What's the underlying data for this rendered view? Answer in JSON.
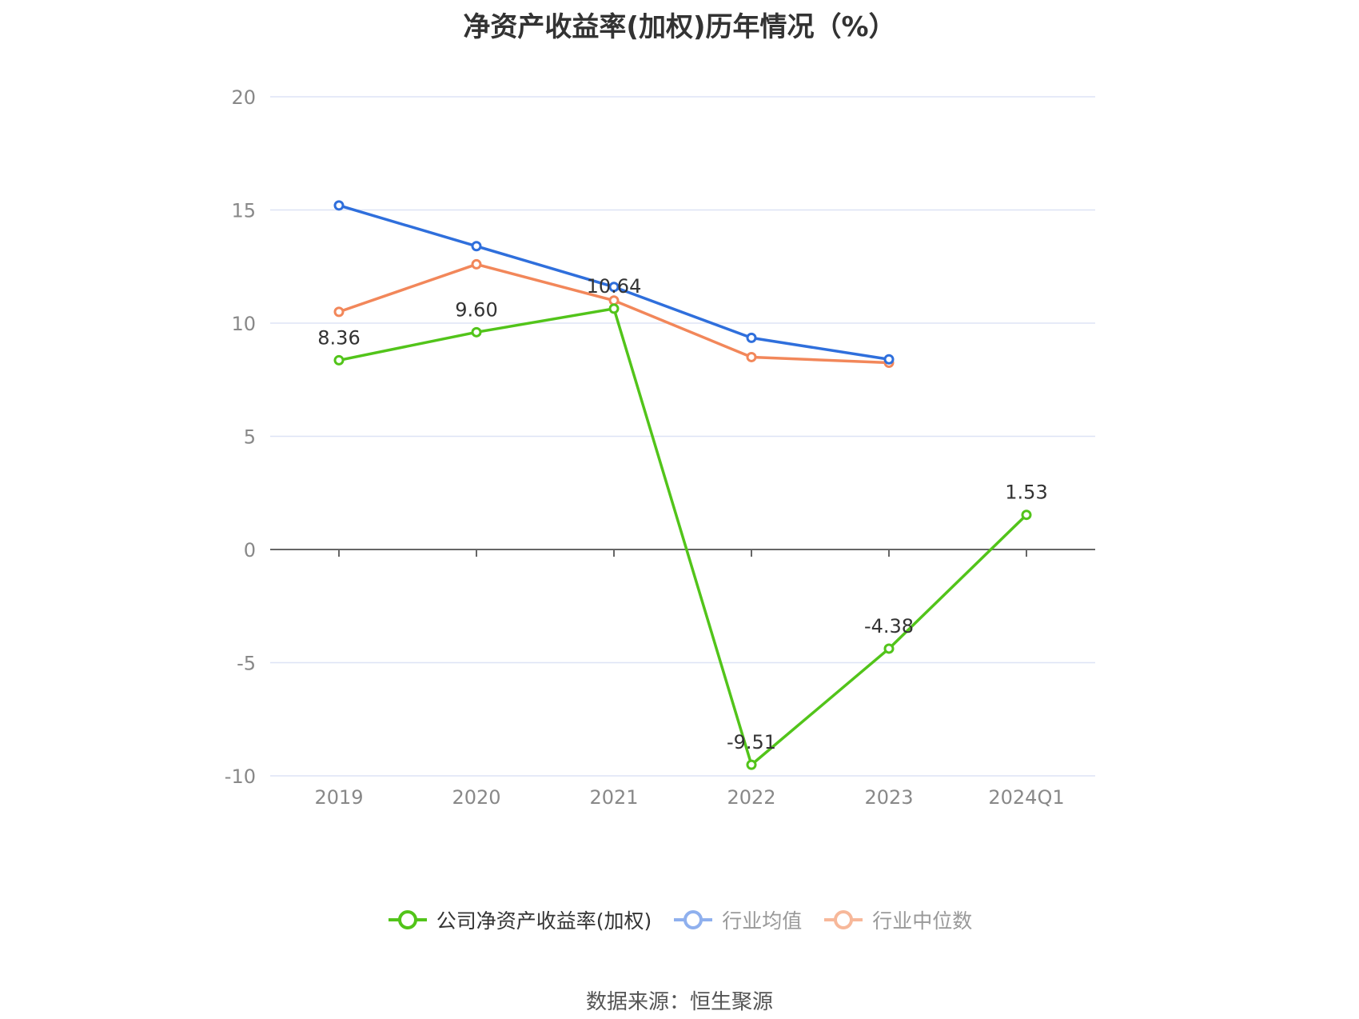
{
  "title": "净资产收益率(加权)历年情况（%）",
  "source": "数据来源：恒生聚源",
  "colors": {
    "company": "#52c41a",
    "avg": "#2f6fdc",
    "median": "#f2875a",
    "grid": "#dde3f5",
    "axis": "#666666",
    "tick_text": "#888888"
  },
  "legend": {
    "items": [
      {
        "label": "公司净资产收益率(加权)",
        "color": "#52c41a",
        "text_color": "#333333"
      },
      {
        "label": "行业均值",
        "color": "#8fb0ee",
        "text_color": "#999999"
      },
      {
        "label": "行业中位数",
        "color": "#f7b89a",
        "text_color": "#999999"
      }
    ]
  },
  "chart_data": {
    "type": "line",
    "categories": [
      "2019",
      "2020",
      "2021",
      "2022",
      "2023",
      "2024Q1"
    ],
    "ylim": [
      -10,
      20
    ],
    "yticks": [
      20,
      15,
      10,
      5,
      0,
      -5,
      -10
    ],
    "series": [
      {
        "name": "公司净资产收益率(加权)",
        "color": "#52c41a",
        "values": [
          8.36,
          9.6,
          10.64,
          -9.51,
          -4.38,
          1.53
        ],
        "labels": [
          "8.36",
          "9.60",
          "10.64",
          "-9.51",
          "-4.38",
          "1.53"
        ]
      },
      {
        "name": "行业均值",
        "color": "#2f6fdc",
        "values": [
          15.2,
          13.4,
          11.6,
          9.35,
          8.4,
          null
        ]
      },
      {
        "name": "行业中位数",
        "color": "#f2875a",
        "values": [
          10.5,
          12.6,
          11.0,
          8.5,
          8.25,
          null
        ]
      }
    ]
  }
}
